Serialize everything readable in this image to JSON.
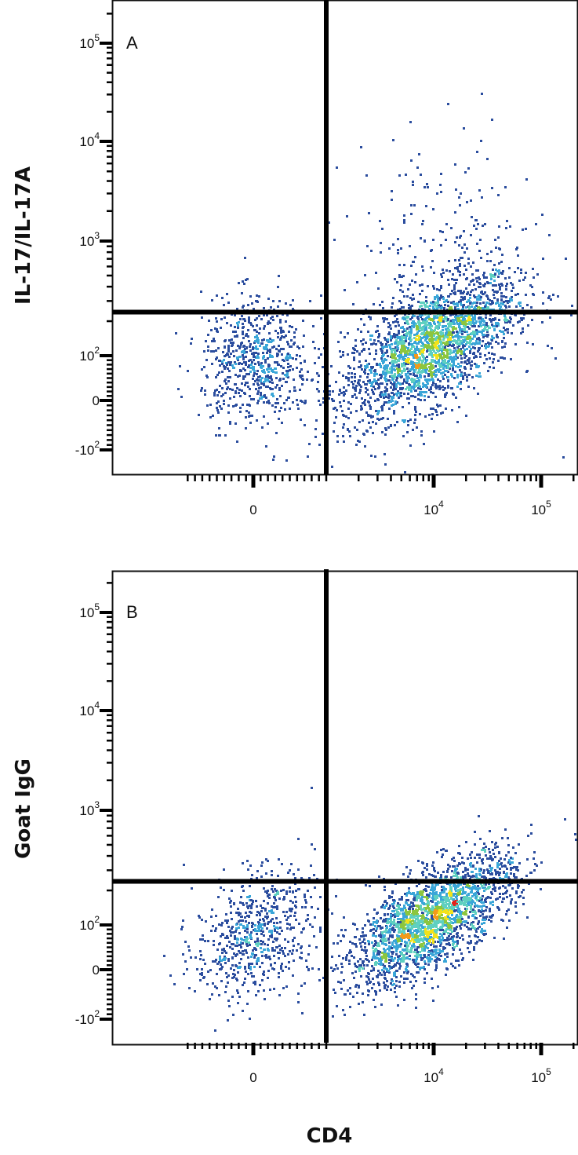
{
  "chart_data": [
    {
      "type": "scatter",
      "panel_label": "A",
      "ylabel": "IL-17/IL-17A",
      "xlabel": "",
      "x_scale": "biexponential",
      "y_scale": "biexponential",
      "x_ticks": [
        "0",
        "10^4",
        "10^5"
      ],
      "y_ticks": [
        "10^5",
        "10^4",
        "10^3",
        "10^2",
        "0",
        "-10^2"
      ],
      "quadrant_gate": {
        "x": 1000,
        "y": 240
      },
      "populations": [
        {
          "x_center": 9000,
          "y_center": 120,
          "share": 0.72
        },
        {
          "x_center": 30,
          "y_center": 90,
          "share": 0.2
        },
        {
          "x_center": 12000,
          "y_center": 600,
          "share": 0.08
        }
      ],
      "color_scale": [
        "#2b4d9e",
        "#3aa6d8",
        "#5fd0c0",
        "#8cc63f",
        "#f2e21b",
        "#f29a1b",
        "#e3221b"
      ]
    },
    {
      "type": "scatter",
      "panel_label": "B",
      "ylabel": "Goat IgG",
      "xlabel": "CD4",
      "x_scale": "biexponential",
      "y_scale": "biexponential",
      "x_ticks": [
        "0",
        "10^4",
        "10^5"
      ],
      "y_ticks": [
        "10^5",
        "10^4",
        "10^3",
        "10^2",
        "0",
        "-10^2"
      ],
      "quadrant_gate": {
        "x": 1000,
        "y": 240
      },
      "populations": [
        {
          "x_center": 9000,
          "y_center": 110,
          "share": 0.75
        },
        {
          "x_center": 0,
          "y_center": 80,
          "share": 0.22
        },
        {
          "x_center": 25000,
          "y_center": 250,
          "share": 0.03
        }
      ],
      "color_scale": [
        "#2b4d9e",
        "#3aa6d8",
        "#5fd0c0",
        "#8cc63f",
        "#f2e21b",
        "#f29a1b",
        "#e3221b"
      ]
    }
  ]
}
